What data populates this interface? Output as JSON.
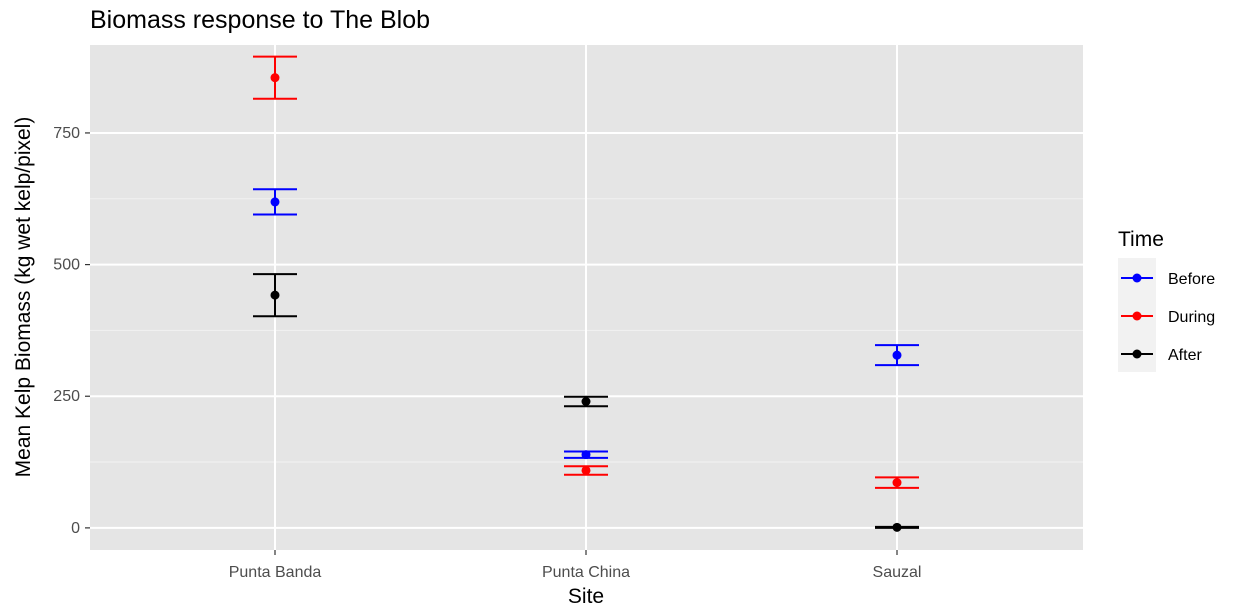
{
  "chart_data": {
    "type": "scatter",
    "title": "Biomass response to The Blob",
    "xlabel": "Site",
    "ylabel": "Mean Kelp Biomass (kg wet kelp/pixel)",
    "categories": [
      "Punta Banda",
      "Punta China",
      "Sauzal"
    ],
    "yticks": [
      0,
      250,
      500,
      750
    ],
    "ylim": [
      -42,
      917
    ],
    "grid": true,
    "legend": {
      "title": "Time",
      "position": "right"
    },
    "series": [
      {
        "name": "Before",
        "color": "#0000ff",
        "values": [
          619,
          139,
          328
        ],
        "lower": [
          595,
          133,
          309
        ],
        "upper": [
          643,
          145,
          347
        ]
      },
      {
        "name": "During",
        "color": "#ff0000",
        "values": [
          855,
          109,
          86
        ],
        "lower": [
          815,
          101,
          76
        ],
        "upper": [
          895,
          117,
          96
        ]
      },
      {
        "name": "After",
        "color": "#000000",
        "values": [
          442,
          240,
          1
        ],
        "lower": [
          402,
          231,
          0
        ],
        "upper": [
          482,
          249,
          2
        ]
      }
    ]
  }
}
